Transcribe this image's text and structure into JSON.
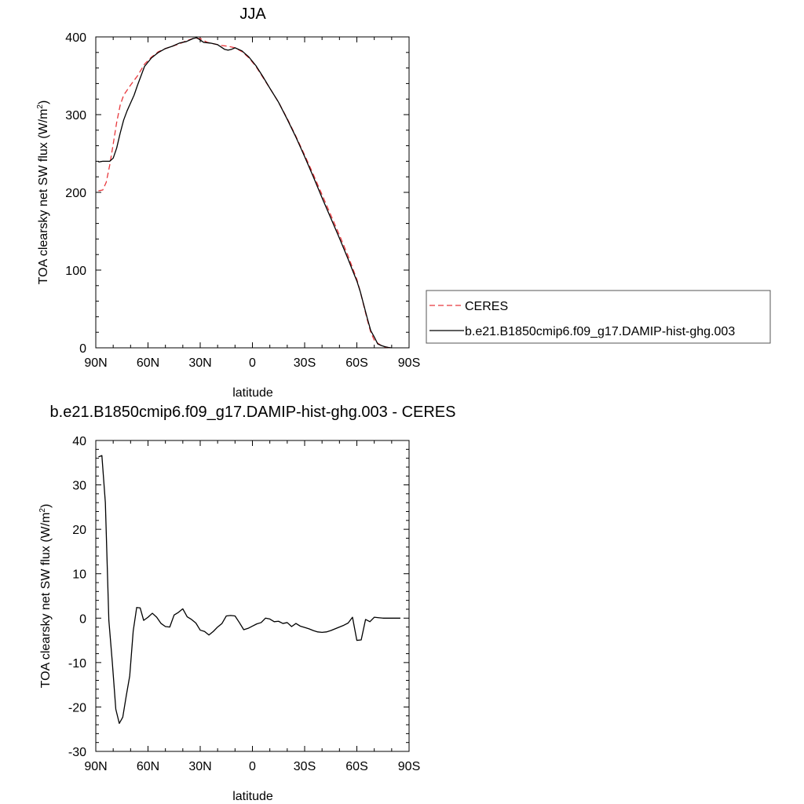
{
  "chart_data": [
    {
      "type": "line",
      "title": "JJA",
      "xlabel": "latitude",
      "ylabel_main": "TOA clearsky net SW flux (W/m",
      "ylabel_sup": "2",
      "ylabel_tail": ")",
      "xlim": [
        90,
        -90
      ],
      "ylim": [
        0,
        400
      ],
      "x_ticks": [
        90,
        60,
        30,
        0,
        -30,
        -60,
        -90
      ],
      "x_tick_labels": [
        "90N",
        "60N",
        "30N",
        "0",
        "30S",
        "60S",
        "90S"
      ],
      "y_ticks": [
        0,
        100,
        200,
        300,
        400
      ],
      "y_tick_labels": [
        "0",
        "100",
        "200",
        "300",
        "400"
      ],
      "legend_position": "right",
      "series": [
        {
          "name": "CERES",
          "color": "#e8383d",
          "dash": true,
          "points": [
            [
              88.5,
              202
            ],
            [
              86,
              203
            ],
            [
              84,
              213
            ],
            [
              82,
              235
            ],
            [
              80,
              262
            ],
            [
              78,
              290
            ],
            [
              76,
              312
            ],
            [
              74,
              325
            ],
            [
              70,
              338
            ],
            [
              66,
              350
            ],
            [
              62,
              365
            ],
            [
              58,
              374
            ],
            [
              54,
              381
            ],
            [
              50,
              385
            ],
            [
              46,
              388
            ],
            [
              42,
              391
            ],
            [
              38,
              395
            ],
            [
              34,
              398
            ],
            [
              30,
              398
            ],
            [
              26,
              393
            ],
            [
              22,
              391
            ],
            [
              18,
              389
            ],
            [
              14,
              388
            ],
            [
              10,
              386
            ],
            [
              6,
              381
            ],
            [
              2,
              373
            ],
            [
              -2,
              362
            ],
            [
              -6,
              348
            ],
            [
              -10,
              334
            ],
            [
              -15,
              316
            ],
            [
              -20,
              295
            ],
            [
              -25,
              272
            ],
            [
              -30,
              248
            ],
            [
              -35,
              223
            ],
            [
              -40,
              197
            ],
            [
              -45,
              171
            ],
            [
              -50,
              145
            ],
            [
              -55,
              118
            ],
            [
              -58,
              100
            ],
            [
              -60,
              88
            ],
            [
              -62,
              72
            ],
            [
              -64,
              54
            ],
            [
              -66,
              36
            ],
            [
              -68,
              20
            ],
            [
              -70,
              10
            ],
            [
              -72,
              6
            ],
            [
              -74,
              3
            ],
            [
              -76,
              1
            ],
            [
              -78,
              0.5
            ],
            [
              -80,
              0
            ]
          ]
        },
        {
          "name": "b.e21.B1850cmip6.f09_g17.DAMIP-hist-ghg.003",
          "color": "#000000",
          "dash": false,
          "points": [
            [
              88.5,
              239
            ],
            [
              86,
              240
            ],
            [
              84,
              240
            ],
            [
              82,
              240
            ],
            [
              80,
              244
            ],
            [
              78,
              257
            ],
            [
              76,
              276
            ],
            [
              74,
              293
            ],
            [
              72,
              305
            ],
            [
              70,
              315
            ],
            [
              68,
              325
            ],
            [
              66,
              338
            ],
            [
              62,
              362
            ],
            [
              58,
              373
            ],
            [
              54,
              380
            ],
            [
              50,
              385
            ],
            [
              46,
              388
            ],
            [
              42,
              392
            ],
            [
              38,
              394
            ],
            [
              34,
              398
            ],
            [
              32,
              399
            ],
            [
              28,
              393
            ],
            [
              24,
              392
            ],
            [
              20,
              390
            ],
            [
              16,
              384
            ],
            [
              14,
              383
            ],
            [
              12,
              384
            ],
            [
              10,
              386
            ],
            [
              6,
              382
            ],
            [
              2,
              374
            ],
            [
              -2,
              363
            ],
            [
              -6,
              349
            ],
            [
              -10,
              334
            ],
            [
              -15,
              316
            ],
            [
              -20,
              294
            ],
            [
              -25,
              271
            ],
            [
              -30,
              246
            ],
            [
              -35,
              220
            ],
            [
              -40,
              193
            ],
            [
              -45,
              167
            ],
            [
              -50,
              141
            ],
            [
              -55,
              114
            ],
            [
              -58,
              97
            ],
            [
              -60,
              86
            ],
            [
              -62,
              72
            ],
            [
              -64,
              55
            ],
            [
              -66,
              38
            ],
            [
              -68,
              22
            ],
            [
              -70,
              14
            ],
            [
              -72,
              5
            ],
            [
              -74,
              3
            ],
            [
              -76,
              1.5
            ],
            [
              -78,
              0.5
            ],
            [
              -80,
              0
            ]
          ]
        }
      ]
    },
    {
      "type": "line",
      "title": "b.e21.B1850cmip6.f09_g17.DAMIP-hist-ghg.003 - CERES",
      "xlabel": "latitude",
      "ylabel_main": "TOA clearsky net SW flux (W/m",
      "ylabel_sup": "2",
      "ylabel_tail": ")",
      "xlim": [
        90,
        -90
      ],
      "ylim": [
        -30,
        40
      ],
      "x_ticks": [
        90,
        60,
        30,
        0,
        -30,
        -60,
        -90
      ],
      "x_tick_labels": [
        "90N",
        "60N",
        "30N",
        "0",
        "30S",
        "60S",
        "90S"
      ],
      "y_ticks": [
        -30,
        -20,
        -10,
        0,
        10,
        20,
        30,
        40
      ],
      "y_tick_labels": [
        "-30",
        "-20",
        "-10",
        "0",
        "10",
        "20",
        "30",
        "40"
      ],
      "series": [
        {
          "name": "",
          "color": "#000000",
          "dash": false,
          "points": [
            [
              88.5,
              36.3
            ],
            [
              86.5,
              36.6
            ],
            [
              84.5,
              26
            ],
            [
              82.5,
              -0.5
            ],
            [
              80.5,
              -10
            ],
            [
              78.5,
              -20.5
            ],
            [
              76.5,
              -23.7
            ],
            [
              74.5,
              -22.3
            ],
            [
              72.5,
              -17.5
            ],
            [
              70.5,
              -13
            ],
            [
              68.5,
              -2.9
            ],
            [
              66.5,
              2.4
            ],
            [
              64.5,
              2.3
            ],
            [
              62.5,
              -0.5
            ],
            [
              60,
              0.2
            ],
            [
              57.5,
              1.1
            ],
            [
              55,
              0.2
            ],
            [
              52.5,
              -1.2
            ],
            [
              50,
              -1.9
            ],
            [
              47.5,
              -2
            ],
            [
              45,
              0.7
            ],
            [
              42.5,
              1.3
            ],
            [
              40,
              2.1
            ],
            [
              37.5,
              0.3
            ],
            [
              35,
              -0.3
            ],
            [
              32.5,
              -1.1
            ],
            [
              30,
              -2.7
            ],
            [
              27.5,
              -3
            ],
            [
              25,
              -3.8
            ],
            [
              22.5,
              -3
            ],
            [
              20,
              -2
            ],
            [
              17.5,
              -1.2
            ],
            [
              15,
              0.5
            ],
            [
              12.5,
              0.6
            ],
            [
              10,
              0.5
            ],
            [
              7.5,
              -1
            ],
            [
              5,
              -2.6
            ],
            [
              2.5,
              -2.3
            ],
            [
              0,
              -1.8
            ],
            [
              -2.5,
              -1.3
            ],
            [
              -5,
              -1
            ],
            [
              -7.5,
              0
            ],
            [
              -10,
              -0.2
            ],
            [
              -12.5,
              -0.8
            ],
            [
              -15,
              -0.7
            ],
            [
              -17.5,
              -1.2
            ],
            [
              -20,
              -1
            ],
            [
              -22.5,
              -1.9
            ],
            [
              -25,
              -1.2
            ],
            [
              -27.5,
              -1.8
            ],
            [
              -30,
              -2.1
            ],
            [
              -32.5,
              -2.4
            ],
            [
              -35,
              -2.8
            ],
            [
              -37.5,
              -3.1
            ],
            [
              -40,
              -3.2
            ],
            [
              -42.5,
              -3.1
            ],
            [
              -45,
              -2.8
            ],
            [
              -47.5,
              -2.4
            ],
            [
              -50,
              -2
            ],
            [
              -52.5,
              -1.6
            ],
            [
              -55,
              -1.1
            ],
            [
              -57.5,
              0.2
            ],
            [
              -60,
              -5
            ],
            [
              -62.5,
              -4.9
            ],
            [
              -65,
              -0.3
            ],
            [
              -67.5,
              -0.8
            ],
            [
              -70,
              0.2
            ],
            [
              -72.5,
              0.1
            ],
            [
              -75,
              0
            ],
            [
              -77.5,
              0
            ],
            [
              -80,
              0
            ],
            [
              -82.5,
              0
            ],
            [
              -85,
              0
            ]
          ]
        }
      ]
    }
  ]
}
